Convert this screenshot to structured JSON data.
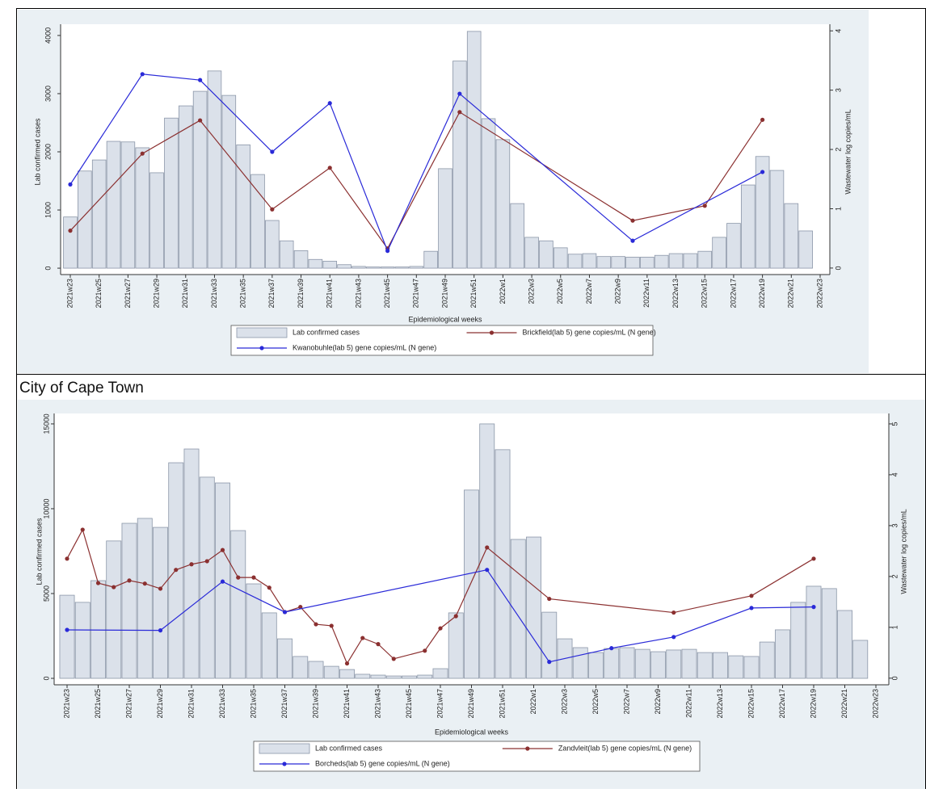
{
  "heading": "City of Cape Town",
  "chart_data": [
    {
      "type": "combo",
      "x_label": "Epidemiological weeks",
      "y_label": "Lab confirmed cases",
      "y2_label": "Wastewater log copies/mL",
      "categories": [
        "2021w23",
        null,
        "2021w25",
        null,
        "2021w27",
        null,
        "2021w29",
        null,
        "2021w31",
        null,
        "2021w33",
        null,
        "2021w35",
        null,
        "2021w37",
        null,
        "2021w39",
        null,
        "2021w41",
        null,
        "2021w43",
        null,
        "2021w45",
        null,
        "2021w47",
        null,
        "2021w49",
        null,
        "2021w51",
        null,
        "2022w1",
        null,
        "2022w3",
        null,
        "2022w5",
        null,
        "2022w7",
        null,
        "2022w9",
        null,
        "2022w11",
        null,
        "2022w13",
        null,
        "2022w15",
        null,
        "2022w17",
        null,
        "2022w19",
        null,
        "2022w21",
        null,
        "2022w23"
      ],
      "ylim": [
        -110,
        4110
      ],
      "yticks": [
        0,
        1000,
        2000,
        3000,
        4000
      ],
      "y2lim": [
        -0.11,
        4.03
      ],
      "y2ticks": [
        0,
        1,
        2,
        3,
        4
      ],
      "series": [
        {
          "name": "Lab confirmed cases",
          "type": "bar",
          "color": "#dbe1ea",
          "values": [
            880,
            1670,
            1860,
            2180,
            2170,
            2070,
            1640,
            2580,
            2790,
            3040,
            3390,
            2970,
            2120,
            1610,
            820,
            470,
            300,
            150,
            120,
            60,
            30,
            20,
            20,
            20,
            30,
            290,
            1710,
            3560,
            4070,
            2570,
            2210,
            1110,
            530,
            470,
            350,
            240,
            250,
            200,
            200,
            190,
            190,
            220,
            250,
            250,
            290,
            530,
            770,
            1430,
            1920,
            1680,
            1110,
            640,
            null
          ]
        },
        {
          "name": "Brickfield(lab 5) gene copies/mL (N gene)",
          "type": "line",
          "color": "#8b3030",
          "axis": "y2",
          "x": [
            "2021w23",
            "2021w28",
            "2021w32",
            "2021w37",
            "2021w41",
            "2021w45",
            "2021w50",
            "2022w10",
            "2022w15",
            "2022w19"
          ],
          "values": [
            0.63,
            1.93,
            2.49,
            0.99,
            1.69,
            0.33,
            2.63,
            0.8,
            1.05,
            2.5
          ]
        },
        {
          "name": "Kwanobuhle(lab 5) gene copies/mL (N gene)",
          "type": "line",
          "color": "#2a2ad8",
          "axis": "y2",
          "x": [
            "2021w23",
            "2021w28",
            "2021w32",
            "2021w37",
            "2021w41",
            "2021w45",
            "2021w50",
            "2022w10",
            "2022w19"
          ],
          "values": [
            1.41,
            3.27,
            3.17,
            1.96,
            2.78,
            0.29,
            2.94,
            0.46,
            1.62
          ]
        }
      ]
    },
    {
      "type": "combo",
      "x_label": "Epidemiological weeks",
      "y_label": "Lab confirmed cases",
      "y2_label": "Wastewater log copies/mL",
      "categories": [
        "2021w23",
        null,
        "2021w25",
        null,
        "2021w27",
        null,
        "2021w29",
        null,
        "2021w31",
        null,
        "2021w33",
        null,
        "2021w35",
        null,
        "2021w37",
        null,
        "2021w39",
        null,
        "2021w41",
        null,
        "2021w43",
        null,
        "2021w45",
        null,
        "2021w47",
        null,
        "2021w49",
        null,
        "2021w51",
        null,
        "2022w1",
        null,
        "2022w3",
        null,
        "2022w5",
        null,
        "2022w7",
        null,
        "2022w9",
        null,
        "2022w11",
        null,
        "2022w13",
        null,
        "2022w15",
        null,
        "2022w17",
        null,
        "2022w19",
        null,
        "2022w21",
        null,
        "2022w23"
      ],
      "ylim": [
        -380,
        15330
      ],
      "yticks": [
        0,
        5000,
        10000,
        15000
      ],
      "y2lim": [
        -0.13,
        5.11
      ],
      "y2ticks": [
        0,
        1,
        2,
        3,
        4,
        5
      ],
      "series": [
        {
          "name": "Lab confirmed cases",
          "type": "bar",
          "color": "#dbe1ea",
          "values": [
            4900,
            4480,
            5760,
            8100,
            9140,
            9430,
            8900,
            12710,
            13520,
            11860,
            11520,
            8710,
            5570,
            3860,
            2330,
            1290,
            1000,
            710,
            520,
            240,
            190,
            140,
            140,
            190,
            570,
            3860,
            11100,
            15000,
            13480,
            8190,
            8330,
            3900,
            2330,
            1810,
            1520,
            1760,
            1810,
            1710,
            1570,
            1670,
            1710,
            1520,
            1520,
            1330,
            1290,
            2140,
            2860,
            4480,
            5430,
            5290,
            4000,
            2240,
            null
          ]
        },
        {
          "name": "Zandvleit(lab 5) gene copies/mL (N gene)",
          "type": "line",
          "color": "#8b3030",
          "axis": "y2",
          "x": [
            "2021w23",
            "2021w24",
            "2021w25",
            "2021w26",
            "2021w27",
            "2021w28",
            "2021w29",
            "2021w30",
            "2021w31",
            "2021w32",
            "2021w33",
            "2021w34",
            "2021w35",
            "2021w36",
            "2021w37",
            "2021w38",
            "2021w39",
            "2021w40",
            "2021w41",
            "2021w42",
            "2021w43",
            "2021w44",
            "2021w46",
            "2021w47",
            "2021w48",
            "2021w50",
            "2022w2",
            "2022w10",
            "2022w15",
            "2022w19"
          ],
          "values": [
            2.35,
            2.92,
            1.87,
            1.79,
            1.92,
            1.86,
            1.76,
            2.13,
            2.24,
            2.3,
            2.52,
            1.98,
            1.98,
            1.78,
            1.3,
            1.4,
            1.06,
            1.03,
            0.29,
            0.79,
            0.67,
            0.38,
            0.54,
            0.98,
            1.22,
            2.57,
            1.56,
            1.29,
            1.62,
            2.35
          ]
        },
        {
          "name": "Borcheds(lab 5) gene copies/mL (N gene)",
          "type": "line",
          "color": "#2a2ad8",
          "axis": "y2",
          "x": [
            "2021w23",
            "2021w29",
            "2021w33",
            "2021w37",
            "2021w50",
            "2022w2",
            "2022w6",
            "2022w10",
            "2022w15",
            "2022w19"
          ],
          "values": [
            0.95,
            0.94,
            1.9,
            1.3,
            2.13,
            0.32,
            0.59,
            0.81,
            1.38,
            1.4
          ]
        }
      ]
    }
  ]
}
